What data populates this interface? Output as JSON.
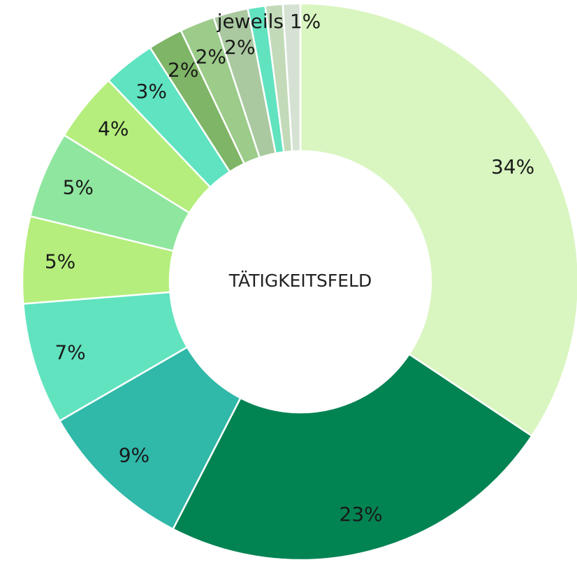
{
  "chart_data": {
    "type": "donut",
    "center_label": "TÄTIGKEITSFELD",
    "values": [
      34,
      23,
      9,
      7,
      5,
      5,
      4,
      3,
      2,
      2,
      2,
      1,
      1,
      1
    ],
    "value_labels": [
      "34%",
      "23%",
      "9%",
      "7%",
      "5%",
      "5%",
      "4%",
      "3%",
      "2%",
      "2%",
      "2%",
      null,
      null,
      null
    ],
    "colors": [
      "#d9f5c0",
      "#028352",
      "#30b8a8",
      "#62e3c0",
      "#b5ee7c",
      "#8fe69e",
      "#b5ee7c",
      "#5fe3c0",
      "#7fb566",
      "#9ccb8a",
      "#aac9a0",
      "#62e3c0",
      "#c2dab8",
      "#d5e2d3"
    ],
    "annotation": "jeweils 1%"
  }
}
